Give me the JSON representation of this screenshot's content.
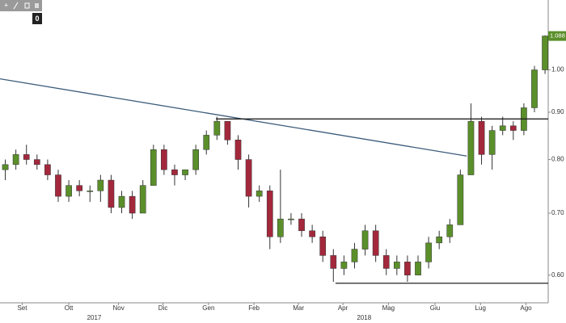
{
  "chart_data": {
    "type": "candlestick",
    "x": [
      0,
      1,
      2,
      3,
      4,
      5,
      6,
      7,
      8,
      9,
      10,
      11,
      12,
      13,
      14,
      15,
      16,
      17,
      18,
      19,
      20,
      21,
      22,
      23,
      24,
      25,
      26,
      27,
      28,
      29,
      30,
      31,
      32,
      33,
      34,
      35,
      36,
      37,
      38,
      39,
      40,
      41,
      42,
      43,
      44,
      45,
      46,
      47,
      48,
      49,
      50,
      51
    ],
    "open": [
      0.78,
      0.79,
      0.81,
      0.8,
      0.79,
      0.77,
      0.73,
      0.75,
      0.74,
      0.74,
      0.76,
      0.71,
      0.73,
      0.7,
      0.75,
      0.82,
      0.78,
      0.77,
      0.78,
      0.82,
      0.85,
      0.88,
      0.84,
      0.8,
      0.73,
      0.74,
      0.66,
      0.69,
      0.69,
      0.67,
      0.66,
      0.63,
      0.61,
      0.62,
      0.64,
      0.67,
      0.63,
      0.61,
      0.62,
      0.6,
      0.62,
      0.65,
      0.66,
      0.68,
      0.77,
      0.88,
      0.81,
      0.86,
      0.87,
      0.86,
      0.91,
      1.0
    ],
    "high": [
      0.8,
      0.82,
      0.83,
      0.81,
      0.8,
      0.78,
      0.76,
      0.76,
      0.75,
      0.77,
      0.77,
      0.74,
      0.74,
      0.76,
      0.83,
      0.83,
      0.79,
      0.78,
      0.83,
      0.86,
      0.89,
      0.88,
      0.85,
      0.81,
      0.75,
      0.75,
      0.78,
      0.7,
      0.7,
      0.68,
      0.67,
      0.64,
      0.63,
      0.65,
      0.68,
      0.68,
      0.64,
      0.63,
      0.63,
      0.63,
      0.66,
      0.67,
      0.69,
      0.78,
      0.92,
      0.89,
      0.87,
      0.89,
      0.88,
      0.92,
      1.01,
      1.09
    ],
    "low": [
      0.76,
      0.78,
      0.79,
      0.78,
      0.76,
      0.72,
      0.72,
      0.73,
      0.72,
      0.72,
      0.7,
      0.7,
      0.69,
      0.7,
      0.75,
      0.77,
      0.75,
      0.76,
      0.77,
      0.81,
      0.84,
      0.83,
      0.78,
      0.71,
      0.72,
      0.64,
      0.65,
      0.68,
      0.66,
      0.65,
      0.62,
      0.59,
      0.6,
      0.61,
      0.63,
      0.62,
      0.6,
      0.6,
      0.59,
      0.6,
      0.61,
      0.64,
      0.65,
      0.68,
      0.77,
      0.79,
      0.78,
      0.85,
      0.84,
      0.85,
      0.9,
      0.99
    ],
    "close": [
      0.79,
      0.81,
      0.8,
      0.79,
      0.77,
      0.73,
      0.75,
      0.74,
      0.74,
      0.76,
      0.71,
      0.73,
      0.7,
      0.75,
      0.82,
      0.78,
      0.77,
      0.78,
      0.82,
      0.85,
      0.88,
      0.84,
      0.8,
      0.73,
      0.74,
      0.66,
      0.69,
      0.69,
      0.67,
      0.66,
      0.63,
      0.61,
      0.62,
      0.64,
      0.67,
      0.63,
      0.61,
      0.62,
      0.6,
      0.62,
      0.65,
      0.66,
      0.68,
      0.77,
      0.88,
      0.81,
      0.86,
      0.87,
      0.86,
      0.91,
      1.0,
      1.088
    ],
    "up_color": "#5a8f2a",
    "down_color": "#a3283c",
    "xlim": [
      -0.5,
      51.3
    ],
    "xticks": [
      {
        "value": 1.6,
        "label": "Set"
      },
      {
        "value": 6,
        "label": "Ott"
      },
      {
        "value": 10.7,
        "label": "Nov"
      },
      {
        "value": 14.9,
        "label": "Dic"
      },
      {
        "value": 19.2,
        "label": "Gen"
      },
      {
        "value": 23.5,
        "label": "Feb"
      },
      {
        "value": 27.7,
        "label": "Mar"
      },
      {
        "value": 31.9,
        "label": "Apr"
      },
      {
        "value": 36.2,
        "label": "Mag"
      },
      {
        "value": 40.6,
        "label": "Giu"
      },
      {
        "value": 44.9,
        "label": "Lug"
      },
      {
        "value": 49.2,
        "label": "Ago"
      }
    ],
    "year_labels": [
      {
        "value": 8.4,
        "label": "2017"
      },
      {
        "value": 33.9,
        "label": "2018"
      }
    ],
    "yscale": "log",
    "ylim": [
      0.56,
      1.19
    ],
    "yticks": [
      {
        "value": 0.6,
        "label": "0.60"
      },
      {
        "value": 0.7,
        "label": "0.70"
      },
      {
        "value": 0.8,
        "label": "0.80"
      },
      {
        "value": 0.9,
        "label": "0.90"
      },
      {
        "value": 1.0,
        "label": "1.00"
      }
    ],
    "last_price": {
      "value": 1.088,
      "label": "1.088",
      "color": "#5a8f2a"
    },
    "lines": [
      {
        "x": [
          -0.5,
          43.6
        ],
        "y": [
          0.978,
          0.807
        ],
        "color": "#3b5b7a"
      },
      {
        "x": [
          19.9,
          51.3
        ],
        "y": [
          0.885,
          0.885
        ],
        "color": "#222"
      },
      {
        "x": [
          31.2,
          51.3
        ],
        "y": [
          0.588,
          0.588
        ],
        "color": "#222"
      }
    ],
    "toolbar_value": "0"
  }
}
